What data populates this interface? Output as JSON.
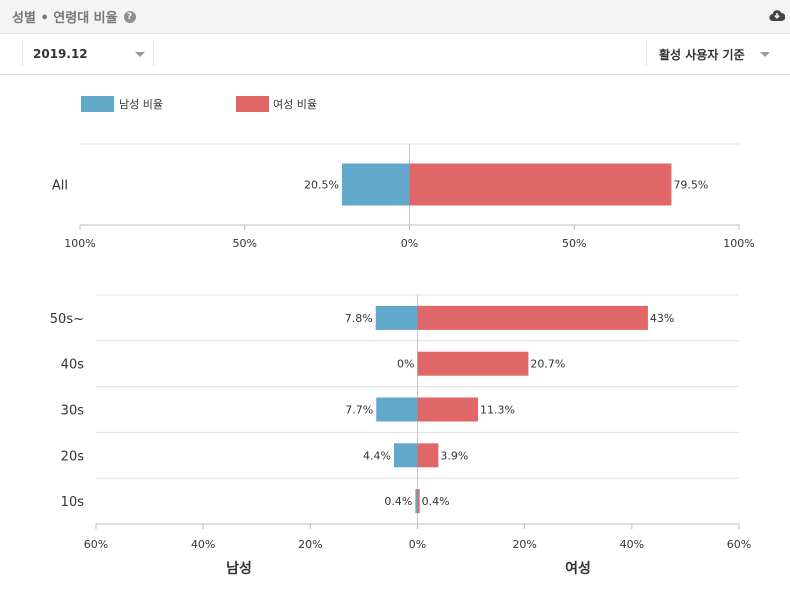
{
  "header": {
    "title": "성별 • 연령대 비율",
    "help_icon": "?",
    "download_icon": "cloud-download-icon"
  },
  "filters": {
    "period": "2019.12",
    "basis": "활성 사용자 기준"
  },
  "colors": {
    "male": "#62a8cb",
    "female": "#df6767"
  },
  "chart_data": [
    {
      "type": "bar",
      "orientation": "horizontal-diverging",
      "legend": [
        "남성 비율",
        "여성 비율"
      ],
      "legend_placement": "top-left",
      "categories": [
        "All"
      ],
      "series": [
        {
          "name": "남성 비율",
          "values": [
            20.5
          ],
          "labels": [
            "20.5%"
          ]
        },
        {
          "name": "여성 비율",
          "values": [
            79.5
          ],
          "labels": [
            "79.5%"
          ]
        }
      ],
      "xlim": [
        -100,
        100
      ],
      "ticks": [
        -100,
        -50,
        0,
        50,
        100
      ],
      "tick_labels": [
        "100%",
        "50%",
        "0%",
        "50%",
        "100%"
      ]
    },
    {
      "type": "bar",
      "orientation": "horizontal-diverging",
      "categories": [
        "50s~",
        "40s",
        "30s",
        "20s",
        "10s"
      ],
      "series": [
        {
          "name": "남성",
          "values": [
            7.8,
            0,
            7.7,
            4.4,
            0.4
          ],
          "labels": [
            "7.8%",
            "0%",
            "7.7%",
            "4.4%",
            "0.4%"
          ]
        },
        {
          "name": "여성",
          "values": [
            43,
            20.7,
            11.3,
            3.9,
            0.4
          ],
          "labels": [
            "43%",
            "20.7%",
            "11.3%",
            "3.9%",
            "0.4%"
          ]
        }
      ],
      "xlim": [
        -60,
        60
      ],
      "ticks": [
        -60,
        -40,
        -20,
        0,
        20,
        40,
        60
      ],
      "tick_labels": [
        "60%",
        "40%",
        "20%",
        "0%",
        "20%",
        "40%",
        "60%"
      ],
      "xlabel_left": "남성",
      "xlabel_right": "여성"
    }
  ]
}
